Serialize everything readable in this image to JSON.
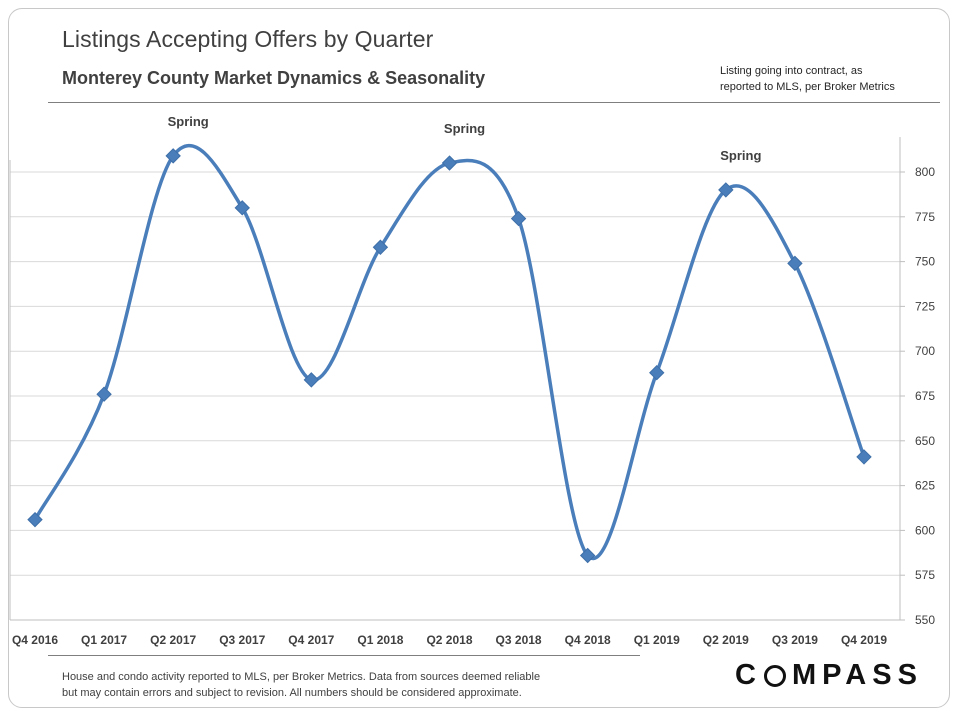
{
  "header": {
    "title": "Listings Accepting Offers by Quarter",
    "subtitle": "Monterey County Market Dynamics & Seasonality",
    "note_line1": "Listing going into contract, as",
    "note_line2": "reported to MLS, per Broker Metrics"
  },
  "footer": {
    "disclaimer_line1": "House and condo activity reported to MLS, per Broker Metrics. Data from sources deemed reliable",
    "disclaimer_line2": "but may contain errors and subject to revision. All numbers should be considered approximate.",
    "logo_left": "C",
    "logo_right": "MPASS"
  },
  "colors": {
    "series": "#4a7ebb",
    "marker": "#4a7ebb",
    "grid": "#d9d9d9",
    "axis": "#bfbfbf",
    "text": "#404040"
  },
  "chart_data": {
    "type": "line",
    "title": "Listings Accepting Offers by Quarter",
    "xlabel": "",
    "ylabel": "",
    "categories": [
      "Q4 2016",
      "Q1 2017",
      "Q2 2017",
      "Q3 2017",
      "Q4 2017",
      "Q1 2018",
      "Q2 2018",
      "Q3 2018",
      "Q4 2018",
      "Q1 2019",
      "Q2 2019",
      "Q3 2019",
      "Q4 2019"
    ],
    "series": [
      {
        "name": "Listings Accepting Offers",
        "values": [
          606,
          676,
          809,
          780,
          684,
          758,
          805,
          774,
          586,
          688,
          790,
          749,
          641
        ]
      }
    ],
    "ylim": [
      550,
      820
    ],
    "yticks": [
      550,
      575,
      600,
      625,
      650,
      675,
      700,
      725,
      750,
      775,
      800
    ],
    "axis_position": "right",
    "grid": true,
    "smooth": true,
    "annotations": [
      {
        "text": "Spring",
        "category": "Q2 2017"
      },
      {
        "text": "Spring",
        "category": "Q2 2018"
      },
      {
        "text": "Spring",
        "category": "Q2 2019"
      }
    ]
  }
}
